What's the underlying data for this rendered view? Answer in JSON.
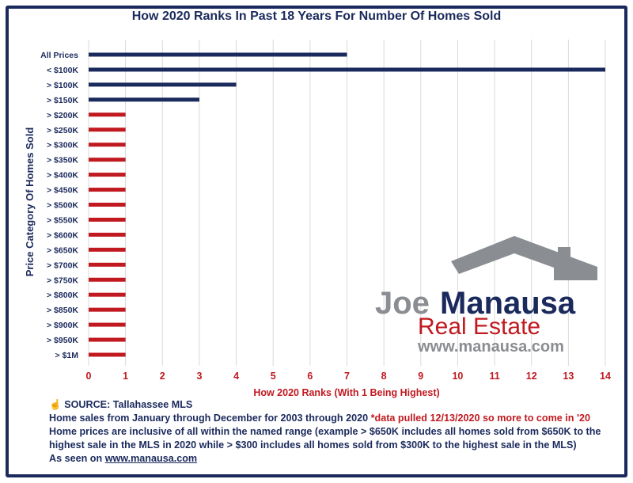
{
  "chart_data": {
    "type": "bar",
    "orientation": "horizontal",
    "title": "How 2020 Ranks In Past 18 Years For Number Of Homes Sold",
    "xlabel": "How 2020 Ranks (With 1 Being Highest)",
    "ylabel": "Price Category Of Homes Sold",
    "xlim": [
      0,
      14
    ],
    "xticks": [
      "0",
      "1",
      "2",
      "3",
      "4",
      "5",
      "6",
      "7",
      "8",
      "9",
      "10",
      "11",
      "12",
      "13",
      "14"
    ],
    "grid": true,
    "categories": [
      "All Prices",
      "< $100K",
      "> $100K",
      "> $150K",
      "> $200K",
      "> $250K",
      "> $300K",
      "> $350K",
      "> $400K",
      "> $450K",
      "> $500K",
      "> $550K",
      "> $600K",
      "> $650K",
      "> $700K",
      "> $750K",
      "> $800K",
      "> $850K",
      "> $900K",
      "> $950K",
      "> $1M"
    ],
    "values": [
      7,
      14,
      4,
      3,
      1,
      1,
      1,
      1,
      1,
      1,
      1,
      1,
      1,
      1,
      1,
      1,
      1,
      1,
      1,
      1,
      1
    ],
    "bar_colors": [
      "#1b2a5c",
      "#1b2a5c",
      "#1b2a5c",
      "#1b2a5c",
      "#c0191f",
      "#c0191f",
      "#c0191f",
      "#c0191f",
      "#c0191f",
      "#c0191f",
      "#c0191f",
      "#c0191f",
      "#c0191f",
      "#c0191f",
      "#c0191f",
      "#c0191f",
      "#c0191f",
      "#c0191f",
      "#c0191f",
      "#c0191f",
      "#c0191f"
    ]
  },
  "colors": {
    "navy": "#1b2a5c",
    "red": "#c0191f",
    "gray": "#8a8d91"
  },
  "logo": {
    "line1a": "Joe",
    "line1b": "Manausa",
    "line2": "Real Estate",
    "line3": "www.manausa.com"
  },
  "footer": {
    "source_icon": "hand-icon",
    "source": "SOURCE: Tallahassee MLS",
    "line1": "Home sales from January through December for 2003 through 2020 ",
    "line1_note": "*data pulled 12/13/2020 so more to come in '20",
    "line2": "Home prices are inclusive of all within the named range (example > $650K includes all homes sold from $650K to the highest sale in the MLS in 2020 while > $300 includes all homes sold from $300K to the highest sale in the MLS)",
    "line3_prefix": "As seen on ",
    "line3_link": "www.manausa.com"
  }
}
